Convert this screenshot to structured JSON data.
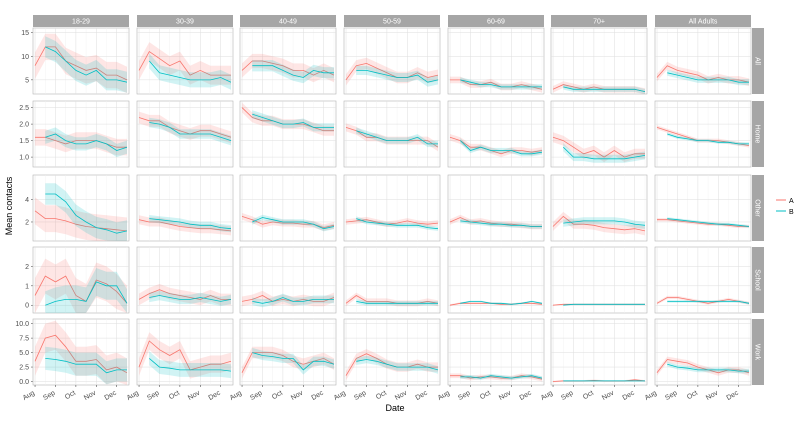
{
  "chart_data": {
    "type": "line",
    "xlabel": "Date",
    "ylabel": "Mean contacts",
    "x_ticks": [
      "Aug",
      "Sep",
      "Oct",
      "Nov",
      "Dec"
    ],
    "x": [
      0,
      0.5,
      1,
      1.5,
      2,
      2.5,
      3,
      3.5,
      4,
      4.5
    ],
    "columns": [
      "18-29",
      "30-39",
      "40-49",
      "50-59",
      "60-69",
      "70+",
      "All Adults"
    ],
    "rows": [
      {
        "name": "All",
        "ylim": [
          2,
          16
        ],
        "ticks": [
          5,
          10,
          15
        ]
      },
      {
        "name": "Home",
        "ylim": [
          0.7,
          2.7
        ],
        "ticks": [
          1.0,
          1.5,
          2.0,
          2.5
        ]
      },
      {
        "name": "Other",
        "ylim": [
          0.3,
          6.2
        ],
        "ticks": [
          2,
          4
        ]
      },
      {
        "name": "School",
        "ylim": [
          -0.4,
          3.0
        ],
        "ticks": [
          0,
          1,
          2
        ]
      },
      {
        "name": "Work",
        "ylim": [
          -0.6,
          10.8
        ],
        "ticks": [
          0.0,
          2.5,
          5.0,
          7.5,
          10.0
        ]
      }
    ],
    "legend": [
      "A",
      "B"
    ],
    "colors": {
      "A": "#f8766d",
      "B": "#00bfc4"
    },
    "series": {
      "All": [
        {
          "A": [
            8,
            12,
            12,
            9,
            8,
            7,
            7.5,
            6,
            6,
            5
          ],
          "B": [
            null,
            12,
            11,
            9,
            7,
            6,
            7,
            5,
            5,
            4.5
          ]
        },
        {
          "A": [
            7,
            11,
            9.5,
            8,
            9,
            6,
            7,
            6,
            6,
            6
          ],
          "B": [
            null,
            9,
            6.5,
            6,
            5.5,
            5,
            5,
            5,
            5.5,
            4.5
          ]
        },
        {
          "A": [
            7,
            9,
            9,
            8.5,
            8,
            7,
            7,
            6,
            7,
            6
          ],
          "B": [
            null,
            8,
            8,
            8,
            7,
            6,
            5.5,
            7,
            6.5,
            6.5
          ]
        },
        {
          "A": [
            5,
            8,
            8.5,
            7.5,
            6.5,
            5.5,
            5.5,
            6.5,
            5.5,
            6
          ],
          "B": [
            null,
            7,
            7,
            6.5,
            6,
            5.5,
            5.5,
            6,
            4.5,
            5
          ]
        },
        {
          "A": [
            5,
            5,
            4,
            4,
            4.5,
            3.5,
            3.5,
            4,
            3.5,
            3
          ],
          "B": [
            null,
            5,
            4.5,
            4,
            4,
            3.5,
            3.5,
            3.5,
            3.5,
            3.5
          ]
        },
        {
          "A": [
            3,
            4,
            3.5,
            3,
            3.5,
            3,
            3,
            3,
            3,
            2.5
          ],
          "B": [
            null,
            3.5,
            3,
            3,
            3,
            3,
            3,
            3,
            3,
            2.5
          ]
        },
        {
          "A": [
            5.5,
            8,
            7,
            6.5,
            6,
            5,
            5.5,
            5,
            5,
            4.5
          ],
          "B": [
            null,
            6.5,
            6,
            5.5,
            5,
            5,
            5,
            5,
            4.5,
            4.5
          ]
        }
      ],
      "Home": [
        {
          "A": [
            1.6,
            1.6,
            1.5,
            1.4,
            1.5,
            1.5,
            1.5,
            1.4,
            1.3,
            1.3
          ],
          "B": [
            null,
            1.6,
            1.7,
            1.5,
            1.4,
            1.4,
            1.5,
            1.4,
            1.2,
            1.3
          ]
        },
        {
          "A": [
            2.2,
            2.1,
            2.1,
            1.9,
            1.8,
            1.7,
            1.8,
            1.8,
            1.7,
            1.6
          ],
          "B": [
            null,
            2.05,
            2.0,
            1.9,
            1.7,
            1.7,
            1.7,
            1.7,
            1.6,
            1.5
          ]
        },
        {
          "A": [
            2.5,
            2.2,
            2.1,
            2.1,
            2.0,
            2.0,
            2.0,
            1.9,
            1.8,
            1.8
          ],
          "B": [
            null,
            2.3,
            2.2,
            2.1,
            2.0,
            2.0,
            2.05,
            1.9,
            1.9,
            1.9
          ]
        },
        {
          "A": [
            1.9,
            1.8,
            1.6,
            1.6,
            1.5,
            1.5,
            1.5,
            1.5,
            1.5,
            1.3
          ],
          "B": [
            null,
            1.8,
            1.7,
            1.6,
            1.5,
            1.5,
            1.5,
            1.6,
            1.4,
            1.4
          ]
        },
        {
          "A": [
            1.6,
            1.5,
            1.3,
            1.3,
            1.2,
            1.1,
            1.2,
            1.2,
            1.15,
            1.2
          ],
          "B": [
            null,
            1.5,
            1.2,
            1.3,
            1.2,
            1.2,
            1.2,
            1.1,
            1.1,
            1.15
          ]
        },
        {
          "A": [
            1.6,
            1.5,
            1.3,
            1.1,
            1.2,
            1.0,
            1.2,
            1.0,
            1.1,
            1.1
          ],
          "B": [
            null,
            1.3,
            1.0,
            1.0,
            0.95,
            0.95,
            0.95,
            0.95,
            1.0,
            1.05
          ]
        },
        {
          "A": [
            1.9,
            1.8,
            1.7,
            1.6,
            1.5,
            1.5,
            1.5,
            1.45,
            1.4,
            1.35
          ],
          "B": [
            null,
            1.7,
            1.6,
            1.55,
            1.5,
            1.5,
            1.45,
            1.45,
            1.4,
            1.4
          ]
        }
      ],
      "Other": [
        {
          "A": [
            3,
            2.3,
            2.3,
            2.1,
            1.8,
            1.6,
            1.5,
            1.4,
            1.3,
            1.2
          ],
          "B": [
            null,
            4.5,
            4.5,
            3.8,
            2.6,
            2.0,
            1.5,
            1.3,
            1.0,
            1.2
          ]
        },
        {
          "A": [
            2.2,
            2.0,
            2.0,
            1.8,
            1.6,
            1.5,
            1.4,
            1.4,
            1.3,
            1.2
          ],
          "B": [
            null,
            2.3,
            2.2,
            2.1,
            2.0,
            1.8,
            1.7,
            1.7,
            1.5,
            1.4
          ]
        },
        {
          "A": [
            2.5,
            2.2,
            1.8,
            2.0,
            1.9,
            1.9,
            1.8,
            1.8,
            1.5,
            1.7
          ],
          "B": [
            null,
            2.0,
            2.4,
            2.2,
            2.0,
            2.0,
            2.0,
            1.8,
            1.4,
            1.6
          ]
        },
        {
          "A": [
            2.0,
            2.1,
            2.2,
            2.0,
            1.8,
            1.9,
            2.1,
            1.9,
            1.8,
            1.9
          ],
          "B": [
            null,
            2.3,
            2.0,
            1.9,
            1.8,
            1.7,
            1.7,
            1.7,
            1.5,
            1.4
          ]
        },
        {
          "A": [
            2.0,
            2.4,
            2.0,
            2.1,
            1.9,
            1.8,
            1.8,
            1.7,
            1.6,
            1.6
          ],
          "B": [
            null,
            2.1,
            2.0,
            1.9,
            1.8,
            1.8,
            1.7,
            1.7,
            1.6,
            1.6
          ]
        },
        {
          "A": [
            1.6,
            2.5,
            1.8,
            1.8,
            1.7,
            1.5,
            1.4,
            1.3,
            1.4,
            1.2
          ],
          "B": [
            null,
            1.9,
            2.0,
            2.1,
            2.1,
            2.1,
            2.1,
            2.0,
            1.8,
            1.7
          ]
        },
        {
          "A": [
            2.2,
            2.2,
            2.1,
            2.0,
            1.9,
            1.8,
            1.8,
            1.7,
            1.6,
            1.6
          ],
          "B": [
            null,
            2.3,
            2.2,
            2.1,
            2.0,
            1.9,
            1.8,
            1.8,
            1.7,
            1.6
          ]
        }
      ],
      "School": [
        {
          "A": [
            0.5,
            1.5,
            1.2,
            1.5,
            0.5,
            0.2,
            1.3,
            1.1,
            0.7,
            0.1
          ],
          "B": [
            null,
            0,
            0.2,
            0.3,
            0.3,
            0.2,
            1.2,
            1.0,
            1.0,
            0.1
          ]
        },
        {
          "A": [
            0.3,
            0.6,
            0.8,
            0.6,
            0.5,
            0.4,
            0.3,
            0.5,
            0.3,
            0.3
          ],
          "B": [
            null,
            0.4,
            0.5,
            0.4,
            0.3,
            0.3,
            0.4,
            0.3,
            0.2,
            0.3
          ]
        },
        {
          "A": [
            0.2,
            0.3,
            0.5,
            0.2,
            0.3,
            0.2,
            0.3,
            0.2,
            0.2,
            0.4
          ],
          "B": [
            null,
            0.2,
            0.1,
            0.2,
            0.4,
            0.2,
            0.2,
            0.3,
            0.3,
            0.3
          ]
        },
        {
          "A": [
            0.1,
            0.5,
            0.2,
            0.2,
            0.2,
            0.1,
            0.1,
            0.1,
            0.2,
            0.1
          ],
          "B": [
            null,
            0.2,
            0.1,
            0.1,
            0.1,
            0.1,
            0.1,
            0.1,
            0.1,
            0.1
          ]
        },
        {
          "A": [
            0.0,
            0.1,
            0.1,
            0.1,
            0.1,
            0.05,
            0.05,
            0.1,
            0.1,
            0.05
          ],
          "B": [
            null,
            0.1,
            0.2,
            0.2,
            0.1,
            0.1,
            0.05,
            0.1,
            0.2,
            0.1
          ]
        },
        {
          "A": [
            0.0,
            0.05,
            0.05,
            0.05,
            0.05,
            0.05,
            0.05,
            0.05,
            0.05,
            0.05
          ],
          "B": [
            null,
            0.0,
            0.05,
            0.05,
            0.05,
            0.05,
            0.05,
            0.05,
            0.05,
            0.05
          ]
        },
        {
          "A": [
            0.1,
            0.4,
            0.4,
            0.3,
            0.2,
            0.1,
            0.2,
            0.3,
            0.2,
            0.1
          ],
          "B": [
            null,
            0.2,
            0.2,
            0.2,
            0.2,
            0.2,
            0.2,
            0.2,
            0.2,
            0.1
          ]
        }
      ],
      "Work": [
        {
          "A": [
            3.5,
            7.5,
            8,
            6,
            3.5,
            3.5,
            3.8,
            2,
            2.5,
            1.5
          ],
          "B": [
            null,
            4,
            3.8,
            3.5,
            3,
            3,
            3,
            1.5,
            2,
            2
          ]
        },
        {
          "A": [
            2.5,
            7,
            5.5,
            4.5,
            5.5,
            2,
            2.5,
            3,
            3,
            3.5
          ],
          "B": [
            null,
            4,
            2.5,
            2.3,
            2,
            2,
            2,
            2,
            2,
            1.8
          ]
        },
        {
          "A": [
            1.5,
            5,
            5,
            5,
            4.5,
            3.5,
            3,
            3.5,
            4,
            3
          ],
          "B": [
            null,
            5,
            4.5,
            4.3,
            4,
            4,
            2,
            3.5,
            3.5,
            3
          ]
        },
        {
          "A": [
            1,
            4,
            4.8,
            4,
            3,
            2.5,
            2.5,
            3,
            2.5,
            2.5
          ],
          "B": [
            null,
            3.5,
            3.8,
            3.5,
            3,
            2.5,
            2.5,
            2.5,
            2.5,
            2
          ]
        },
        {
          "A": [
            1,
            1,
            0.6,
            0.8,
            0.8,
            0.6,
            0.6,
            1,
            0.8,
            0.4
          ],
          "B": [
            null,
            0.8,
            0.8,
            0.6,
            1,
            0.8,
            0.6,
            0.8,
            1,
            0.6
          ]
        },
        {
          "A": [
            0,
            0.1,
            0.1,
            0.1,
            0.2,
            0.1,
            0.1,
            0.1,
            0.3,
            0.1
          ],
          "B": [
            null,
            0.1,
            0.1,
            0.1,
            0.1,
            0.1,
            0.1,
            0.1,
            0.1,
            0.1
          ]
        },
        {
          "A": [
            1.5,
            3.8,
            3.5,
            3.2,
            2.5,
            2,
            1.5,
            2,
            2,
            1.5
          ],
          "B": [
            null,
            3,
            2.5,
            2.3,
            2,
            2,
            2,
            2,
            1.8,
            1.8
          ]
        }
      ]
    },
    "ribbon": {
      "All": [
        2.8,
        2.0,
        1.5,
        1.2,
        0.7,
        0.7,
        0.8
      ],
      "Home": [
        0.25,
        0.18,
        0.15,
        0.12,
        0.1,
        0.15,
        0.06
      ],
      "Other": [
        1.2,
        0.4,
        0.3,
        0.25,
        0.25,
        0.4,
        0.15
      ],
      "School": [
        0.9,
        0.3,
        0.25,
        0.15,
        0.05,
        0.03,
        0.08
      ],
      "Work": [
        2.5,
        1.5,
        1.0,
        0.8,
        0.4,
        0.15,
        0.5
      ]
    },
    "grid": true,
    "legend_position": "right"
  }
}
